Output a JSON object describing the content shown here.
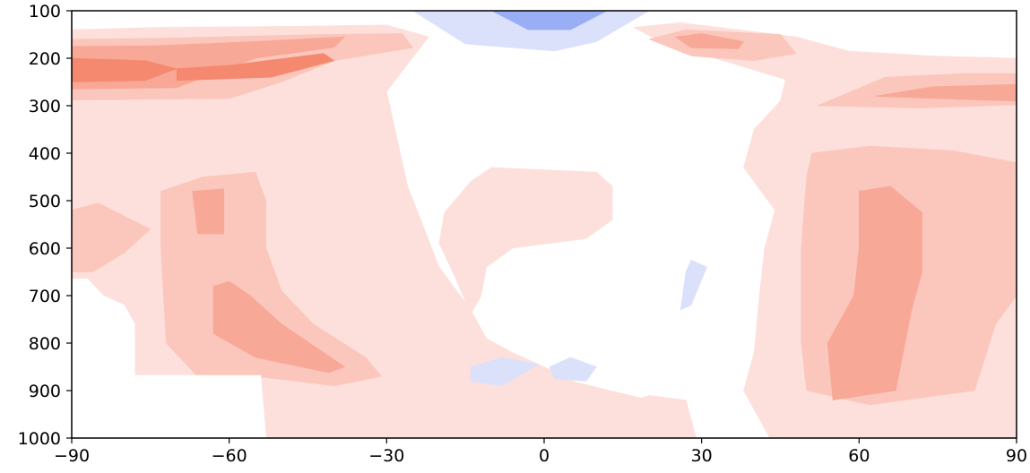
{
  "chart_data": {
    "type": "heatmap",
    "subtype": "filled-contour",
    "title": "",
    "xlabel": "",
    "ylabel": "",
    "xlim": [
      -90,
      90
    ],
    "ylim": [
      1000,
      100
    ],
    "y_inverted": true,
    "grid": false,
    "legend": "none",
    "x_ticks": [
      -90,
      -60,
      -30,
      0,
      30,
      60,
      90
    ],
    "x_tick_labels": [
      "−90",
      "−60",
      "−30",
      "0",
      "30",
      "60",
      "90"
    ],
    "y_ticks": [
      100,
      200,
      300,
      400,
      500,
      600,
      700,
      800,
      900,
      1000
    ],
    "y_tick_labels": [
      "100",
      "200",
      "300",
      "400",
      "500",
      "600",
      "700",
      "800",
      "900",
      "1000"
    ],
    "colors": {
      "level_neg2": "#9aaef5",
      "level_neg1": "#dbe1fa",
      "level_0": "#ffffff",
      "level_pos1": "#fde0db",
      "level_pos2": "#fbc6bb",
      "level_pos3": "#f8a896",
      "level_pos4": "#f5896f",
      "level_pos5": "#f16b50",
      "masked": "#ffffff"
    },
    "regions": [
      {
        "level": "level_pos1",
        "points": [
          [
            -90,
            140
          ],
          [
            -74,
            135
          ],
          [
            -44,
            132
          ],
          [
            -30,
            130
          ],
          [
            -22,
            155
          ],
          [
            -30,
            270
          ],
          [
            -28,
            370
          ],
          [
            -26,
            470
          ],
          [
            -20,
            640
          ],
          [
            -14,
            730
          ],
          [
            -11,
            790
          ],
          [
            -6,
            820
          ],
          [
            2,
            860
          ],
          [
            6,
            882
          ],
          [
            20,
            920
          ],
          [
            25,
            945
          ],
          [
            29,
            1000
          ],
          [
            -90,
            1000
          ]
        ]
      },
      {
        "level": "level_pos1",
        "points": [
          [
            17,
            135
          ],
          [
            26,
            125
          ],
          [
            48,
            155
          ],
          [
            58,
            185
          ],
          [
            74,
            195
          ],
          [
            90,
            200
          ],
          [
            90,
            1000
          ],
          [
            43,
            1000
          ],
          [
            40,
            940
          ],
          [
            38,
            900
          ],
          [
            40,
            820
          ],
          [
            41,
            700
          ],
          [
            42,
            600
          ],
          [
            44,
            520
          ],
          [
            38,
            430
          ],
          [
            40,
            350
          ],
          [
            45,
            290
          ],
          [
            46,
            245
          ],
          [
            34,
            205
          ],
          [
            24,
            175
          ]
        ]
      },
      {
        "level": "level_pos1",
        "points": [
          [
            -19,
            525
          ],
          [
            -14,
            460
          ],
          [
            -10,
            430
          ],
          [
            10,
            440
          ],
          [
            13,
            470
          ],
          [
            13,
            540
          ],
          [
            8,
            580
          ],
          [
            -6,
            600
          ],
          [
            -11,
            640
          ],
          [
            -12,
            700
          ],
          [
            -14,
            740
          ],
          [
            -17,
            660
          ],
          [
            -20,
            590
          ]
        ]
      },
      {
        "level": "level_pos1",
        "points": [
          [
            12,
            940
          ],
          [
            20,
            910
          ],
          [
            27,
            920
          ],
          [
            29,
            1000
          ],
          [
            10,
            1000
          ]
        ]
      },
      {
        "level": "level_pos2",
        "points": [
          [
            -90,
            160
          ],
          [
            -73,
            158
          ],
          [
            -44,
            150
          ],
          [
            -27,
            148
          ],
          [
            -25,
            178
          ],
          [
            -40,
            205
          ],
          [
            -50,
            250
          ],
          [
            -60,
            285
          ],
          [
            -90,
            288
          ]
        ]
      },
      {
        "level": "level_pos2",
        "points": [
          [
            -73,
            480
          ],
          [
            -65,
            450
          ],
          [
            -55,
            440
          ],
          [
            -53,
            500
          ],
          [
            -53,
            600
          ],
          [
            -50,
            690
          ],
          [
            -44,
            760
          ],
          [
            -34,
            830
          ],
          [
            -31,
            870
          ],
          [
            -40,
            890
          ],
          [
            -55,
            870
          ],
          [
            -66,
            870
          ],
          [
            -72,
            800
          ],
          [
            -73,
            600
          ]
        ]
      },
      {
        "level": "level_pos2",
        "points": [
          [
            -90,
            520
          ],
          [
            -85,
            505
          ],
          [
            -75,
            560
          ],
          [
            -80,
            610
          ],
          [
            -86,
            650
          ],
          [
            -90,
            650
          ]
        ]
      },
      {
        "level": "level_pos2",
        "points": [
          [
            20,
            160
          ],
          [
            27,
            140
          ],
          [
            45,
            150
          ],
          [
            48,
            190
          ],
          [
            40,
            205
          ],
          [
            28,
            195
          ]
        ]
      },
      {
        "level": "level_pos2",
        "points": [
          [
            52,
            300
          ],
          [
            65,
            240
          ],
          [
            80,
            232
          ],
          [
            90,
            232
          ],
          [
            90,
            298
          ],
          [
            72,
            305
          ]
        ]
      },
      {
        "level": "level_pos2",
        "points": [
          [
            51,
            400
          ],
          [
            62,
            385
          ],
          [
            78,
            395
          ],
          [
            90,
            420
          ],
          [
            90,
            700
          ],
          [
            86,
            760
          ],
          [
            82,
            900
          ],
          [
            62,
            930
          ],
          [
            50,
            900
          ],
          [
            49,
            800
          ],
          [
            49,
            600
          ],
          [
            50,
            450
          ]
        ]
      },
      {
        "level": "level_pos3",
        "points": [
          [
            -90,
            175
          ],
          [
            -75,
            174
          ],
          [
            -55,
            165
          ],
          [
            -38,
            155
          ],
          [
            -40,
            177
          ],
          [
            -55,
            200
          ],
          [
            -70,
            262
          ],
          [
            -90,
            265
          ]
        ]
      },
      {
        "level": "level_pos3",
        "points": [
          [
            -63,
            680
          ],
          [
            -60,
            670
          ],
          [
            -56,
            700
          ],
          [
            -50,
            760
          ],
          [
            -38,
            850
          ],
          [
            -41,
            862
          ],
          [
            -55,
            830
          ],
          [
            -63,
            780
          ]
        ]
      },
      {
        "level": "level_pos3",
        "points": [
          [
            -67,
            480
          ],
          [
            -61,
            475
          ],
          [
            -61,
            570
          ],
          [
            -66,
            570
          ]
        ]
      },
      {
        "level": "level_pos3",
        "points": [
          [
            25,
            155
          ],
          [
            30,
            148
          ],
          [
            38,
            165
          ],
          [
            37,
            180
          ],
          [
            28,
            178
          ]
        ]
      },
      {
        "level": "level_pos3",
        "points": [
          [
            63,
            280
          ],
          [
            74,
            260
          ],
          [
            90,
            255
          ],
          [
            90,
            290
          ],
          [
            80,
            287
          ]
        ]
      },
      {
        "level": "level_pos3",
        "points": [
          [
            60,
            480
          ],
          [
            66,
            470
          ],
          [
            72,
            525
          ],
          [
            72,
            650
          ],
          [
            70,
            730
          ],
          [
            67,
            900
          ],
          [
            55,
            920
          ],
          [
            54,
            800
          ],
          [
            59,
            700
          ],
          [
            60,
            600
          ]
        ]
      },
      {
        "level": "level_pos4",
        "points": [
          [
            -90,
            200
          ],
          [
            -76,
            205
          ],
          [
            -70,
            222
          ],
          [
            -76,
            247
          ],
          [
            -90,
            250
          ]
        ]
      },
      {
        "level": "level_pos4",
        "points": [
          [
            -70,
            222
          ],
          [
            -60,
            215
          ],
          [
            -42,
            190
          ],
          [
            -40,
            205
          ],
          [
            -52,
            240
          ],
          [
            -70,
            247
          ]
        ]
      },
      {
        "level": "level_neg1",
        "points": [
          [
            -25,
            100
          ],
          [
            20,
            100
          ],
          [
            10,
            165
          ],
          [
            2,
            185
          ],
          [
            -15,
            170
          ]
        ]
      },
      {
        "level": "level_neg1",
        "points": [
          [
            27,
            650
          ],
          [
            28,
            625
          ],
          [
            31,
            640
          ],
          [
            28,
            720
          ],
          [
            26,
            730
          ]
        ]
      },
      {
        "level": "level_neg1",
        "points": [
          [
            -14,
            850
          ],
          [
            -8,
            830
          ],
          [
            -1,
            845
          ],
          [
            -8,
            890
          ],
          [
            -14,
            880
          ]
        ]
      },
      {
        "level": "level_neg1",
        "points": [
          [
            1,
            850
          ],
          [
            5,
            830
          ],
          [
            10,
            850
          ],
          [
            8,
            880
          ],
          [
            2,
            875
          ]
        ]
      },
      {
        "level": "level_neg1",
        "points": [
          [
            -85,
            780
          ],
          [
            -79,
            750
          ],
          [
            -80,
            855
          ],
          [
            -85,
            868
          ]
        ]
      },
      {
        "level": "level_neg2",
        "points": [
          [
            -10,
            100
          ],
          [
            12,
            100
          ],
          [
            5,
            140
          ],
          [
            -3,
            140
          ]
        ]
      },
      {
        "level": "level_neg2",
        "points": [
          [
            -84,
            860
          ],
          [
            -82,
            840
          ],
          [
            -79,
            860
          ],
          [
            -81,
            868
          ]
        ]
      },
      {
        "level": "masked",
        "points": [
          [
            -90,
            665
          ],
          [
            -87,
            665
          ],
          [
            -84,
            700
          ],
          [
            -80,
            720
          ],
          [
            -78,
            760
          ],
          [
            -78,
            868
          ],
          [
            -90,
            868
          ]
        ]
      },
      {
        "level": "masked",
        "points": [
          [
            -90,
            868
          ],
          [
            -54,
            868
          ],
          [
            -53,
            1000
          ],
          [
            -90,
            1000
          ]
        ]
      }
    ]
  }
}
